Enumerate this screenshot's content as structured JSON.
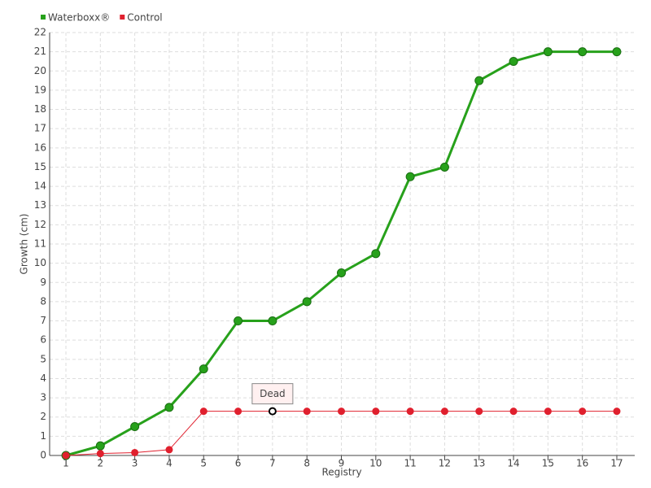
{
  "chart_data": {
    "type": "line",
    "x_label": "Registry",
    "y_label": "Growth (cm)",
    "categories": [
      "1",
      "2",
      "3",
      "4",
      "5",
      "6",
      "7",
      "8",
      "9",
      "10",
      "11",
      "12",
      "13",
      "14",
      "15",
      "16",
      "17"
    ],
    "series": [
      {
        "name": "Waterboxx®",
        "color": "#27a11b",
        "values": [
          0,
          0.5,
          1.5,
          2.5,
          4.5,
          7,
          7,
          8,
          9.5,
          10.5,
          14.5,
          15,
          19.5,
          20.5,
          21,
          21,
          21
        ]
      },
      {
        "name": "Control",
        "color": "#e0202e",
        "values": [
          0,
          0.1,
          0.15,
          0.3,
          2.3,
          2.3,
          2.3,
          2.3,
          2.3,
          2.3,
          2.3,
          2.3,
          2.3,
          2.3,
          2.3,
          2.3,
          2.3
        ],
        "point_labels": [
          null,
          null,
          null,
          null,
          null,
          null,
          "Dead",
          null,
          null,
          null,
          null,
          null,
          null,
          null,
          null,
          null,
          null
        ]
      }
    ],
    "ylim": [
      0,
      22
    ],
    "yticks": [
      0,
      1,
      2,
      3,
      4,
      5,
      6,
      7,
      8,
      9,
      10,
      11,
      12,
      13,
      14,
      15,
      16,
      17,
      18,
      19,
      20,
      21,
      22
    ],
    "grid": true,
    "legend": "top-left"
  }
}
